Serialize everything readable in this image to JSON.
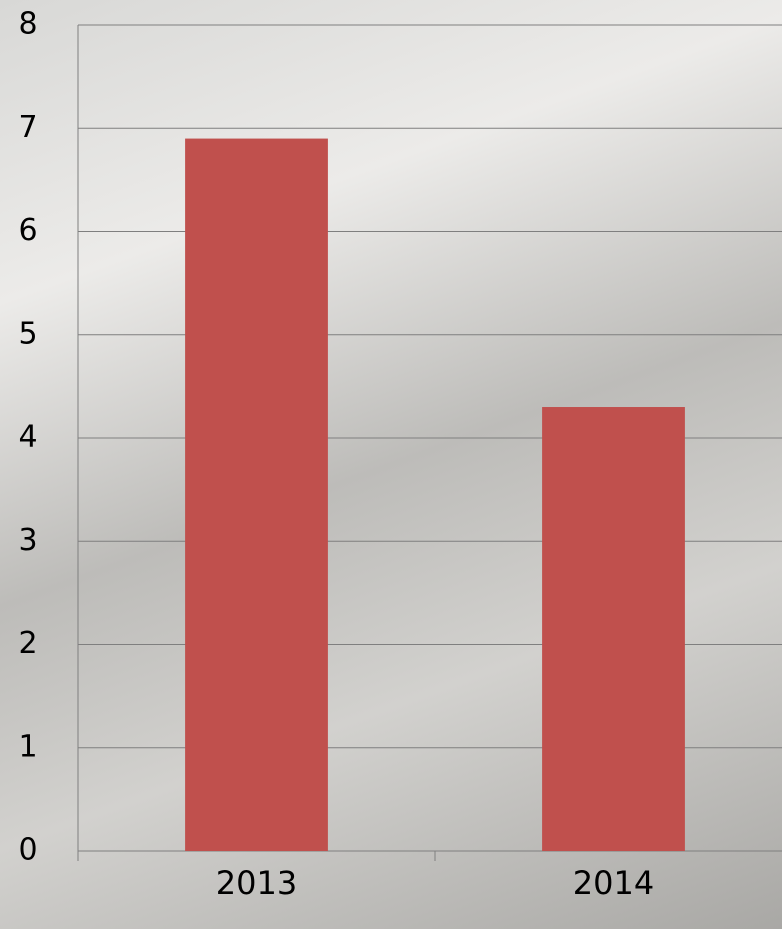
{
  "chart_data": {
    "type": "bar",
    "categories": [
      "2013",
      "2014"
    ],
    "values": [
      6.9,
      4.3
    ],
    "color": "#c0504d",
    "ylim": [
      0,
      8
    ],
    "yticks": [
      0,
      1,
      2,
      3,
      4,
      5,
      6,
      7,
      8
    ],
    "grid": true
  }
}
